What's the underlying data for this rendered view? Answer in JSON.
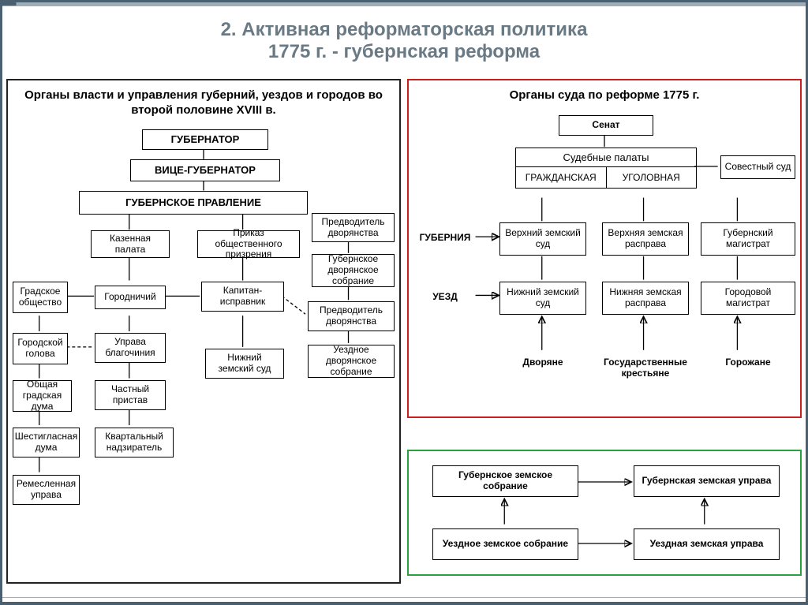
{
  "slide": {
    "title": "2. Активная реформаторская политика\n1775 г. - губернская реформа"
  },
  "panel1": {
    "title": "Органы власти и управления губерний, уездов и городов во второй половине XVIII в.",
    "nodes": {
      "gub": "ГУБЕРНАТОР",
      "vgub": "ВИЦЕ-ГУБЕРНАТОР",
      "gprav": "ГУБЕРНСКОЕ ПРАВЛЕНИЕ",
      "kaz": "Казенная палата",
      "prikaz": "Приказ общественного призрения",
      "pred_dvor1": "Предводитель дворянства",
      "gub_sobr": "Губернское дворянское собрание",
      "grad": "Градское общество",
      "gorod": "Городничий",
      "kapitan": "Капитан-исправник",
      "pred_dvor2": "Предводитель дворянства",
      "uezd_sobr": "Уездное дворянское собрание",
      "gorgolova": "Городской голова",
      "uprava": "Управа благочиния",
      "nizh": "Нижний земский суд",
      "obshduma": "Общая градская дума",
      "pristav": "Частный пристав",
      "shest": "Шестигласная дума",
      "kvart": "Квартальный надзиратель",
      "remes": "Ремесленная управа"
    }
  },
  "panel2": {
    "title": "Органы суда по реформе 1775 г.",
    "nodes": {
      "senat": "Сенат",
      "palaty": "Судебные палаты",
      "grazh": "ГРАЖДАНСКАЯ",
      "ugol": "УГОЛОВНАЯ",
      "sovest": "Совестный суд",
      "guberniya": "ГУБЕРНИЯ",
      "uezd": "УЕЗД",
      "vzsud": "Верхний земский суд",
      "nzsud": "Нижний земский суд",
      "vzras": "Верхняя земская расправа",
      "nzras": "Нижняя земская расправа",
      "gubmag": "Губернский магистрат",
      "gormag": "Городовой магистрат",
      "dvor": "Дворяне",
      "krest": "Государственные крестьяне",
      "gorozh": "Горожане"
    }
  },
  "panel3": {
    "nodes": {
      "gzs": "Губернское земское собрание",
      "gzu": "Губернская земская управа",
      "uzs": "Уездное земское собрание",
      "uzu": "Уездная земская управа"
    }
  }
}
